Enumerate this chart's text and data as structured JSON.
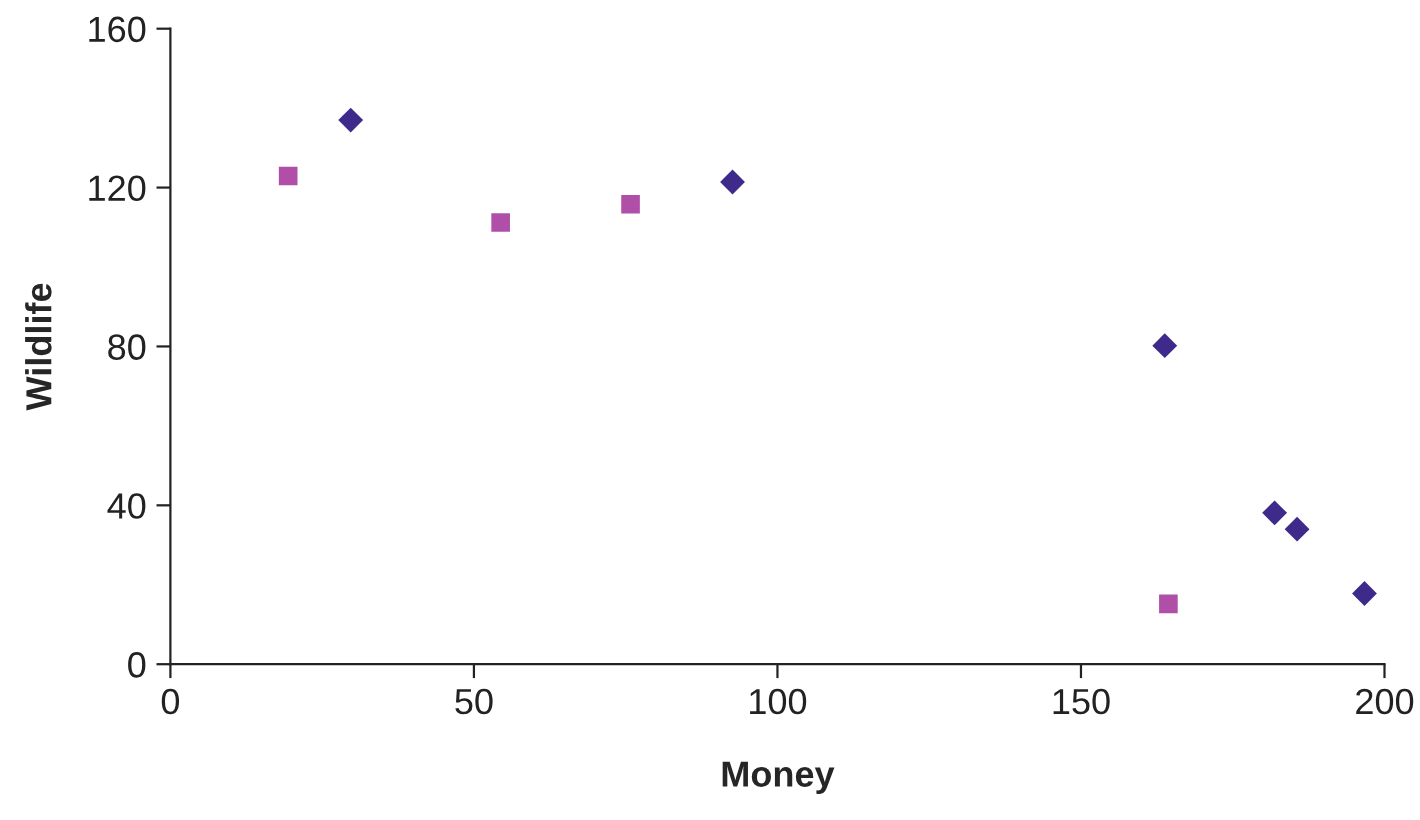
{
  "chart_data": {
    "type": "scatter",
    "xlabel": "Money",
    "ylabel": "Wildlife",
    "xlim": [
      0,
      200
    ],
    "xticks": [
      0,
      50,
      100,
      150,
      200
    ],
    "ylim": [
      0,
      160
    ],
    "yticks": [
      0,
      40,
      80,
      120,
      160
    ],
    "grid": false,
    "legend": false,
    "series": [
      {
        "color": "#3d2a8a",
        "marker": "diamond",
        "x": [
          29.7,
          92.6,
          163.8,
          181.9,
          185.6,
          196.7
        ],
        "values": [
          137,
          121.4,
          80.2,
          38.1,
          34,
          17.8
        ]
      },
      {
        "color": "#b04fa8",
        "marker": "square",
        "x": [
          19.4,
          54.4,
          75.8,
          164.4
        ],
        "values": [
          122.9,
          111.2,
          115.8,
          15.2
        ]
      }
    ]
  }
}
